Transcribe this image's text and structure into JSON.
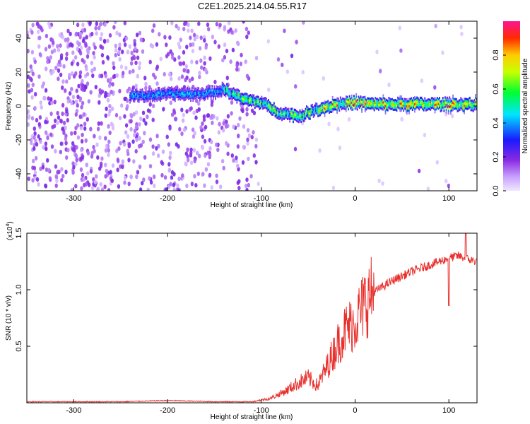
{
  "title": "C2E1.2025.214.04.55.R17",
  "chart_data": [
    {
      "type": "heatmap",
      "xlabel": "Height of straight line (km)",
      "ylabel": "Frequency (Hz)",
      "xlim": [
        -350,
        130
      ],
      "ylim": [
        -50,
        50
      ],
      "x_ticks": [
        -300,
        -200,
        -100,
        0,
        100
      ],
      "y_ticks": [
        -40,
        -20,
        0,
        20,
        40
      ],
      "colorbar": {
        "label": "Normalized spectral amplitude",
        "range": [
          0,
          1
        ],
        "ticks": [
          "0.0",
          "0.2",
          "0.4",
          "0.6",
          "0.8"
        ],
        "colormap": "rainbow (white, violet, blue, cyan, green, yellow, red, magenta)"
      },
      "ridge": {
        "description": "Dominant frequency ridge",
        "x": [
          -230,
          -200,
          -170,
          -150,
          -140,
          -120,
          -100,
          -80,
          -60,
          -40,
          -20,
          0,
          20,
          50,
          80,
          100,
          130
        ],
        "y": [
          6,
          7,
          7,
          8,
          10,
          4,
          2,
          -4,
          -6,
          -2,
          1,
          2,
          1,
          1,
          1,
          1,
          1
        ]
      }
    },
    {
      "type": "line",
      "xlabel": "Height of straight line (km)",
      "ylabel": "SNR (10 * v/v)",
      "y_multiplier": "(x10^4)",
      "y_multiplier_base": "(x10",
      "y_multiplier_exp": "4",
      "y_multiplier_close": ")",
      "xlim": [
        -350,
        130
      ],
      "ylim": [
        0,
        1.5
      ],
      "x_ticks": [
        -300,
        -200,
        -100,
        0,
        100
      ],
      "y_ticks": [
        "0.5",
        "1.0",
        "1.5"
      ],
      "series": [
        {
          "color": "#e8312e",
          "x": [
            -350,
            -300,
            -250,
            -200,
            -150,
            -110,
            -90,
            -75,
            -60,
            -50,
            -40,
            -30,
            -20,
            -10,
            0,
            10,
            20,
            40,
            60,
            80,
            100,
            110,
            120,
            130
          ],
          "y": [
            0.01,
            0.01,
            0.01,
            0.02,
            0.01,
            0.01,
            0.04,
            0.1,
            0.18,
            0.22,
            0.15,
            0.32,
            0.5,
            0.65,
            0.72,
            0.88,
            0.98,
            1.08,
            1.16,
            1.22,
            1.28,
            1.3,
            1.27,
            1.25
          ]
        }
      ]
    }
  ]
}
